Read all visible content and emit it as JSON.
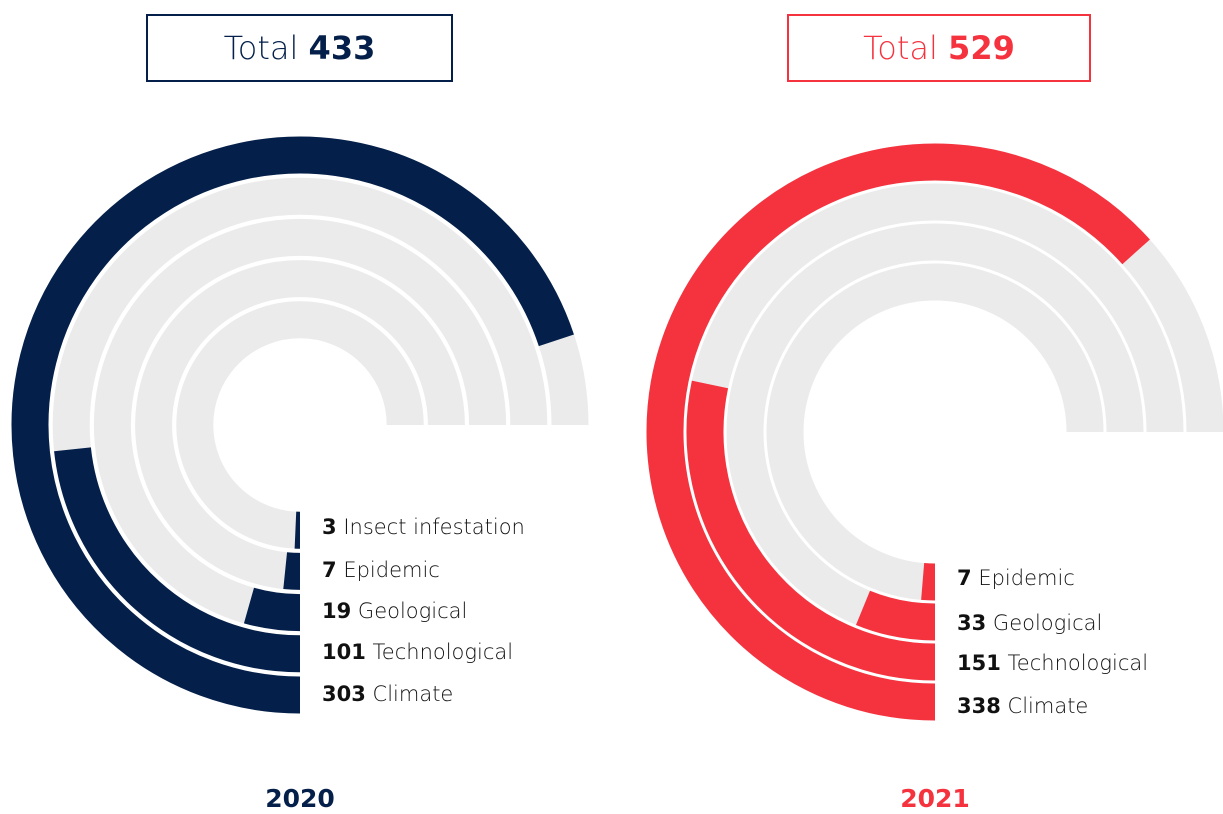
{
  "chart_data": [
    {
      "type": "radial_bar",
      "total_label": "Total",
      "total": 433,
      "year": "2020",
      "categories": [
        "Climate",
        "Technological",
        "Geological",
        "Epidemic",
        "Insect infestation"
      ],
      "values": [
        303,
        101,
        19,
        7,
        3
      ],
      "color": "#04204a",
      "track_color": "#ebebeb",
      "ylim": [
        0,
        325
      ]
    },
    {
      "type": "radial_bar",
      "total_label": "Total",
      "total": 529,
      "year": "2021",
      "categories": [
        "Climate",
        "Technological",
        "Geological",
        "Epidemic"
      ],
      "values": [
        338,
        151,
        33,
        7
      ],
      "color": "#f5333f",
      "track_color": "#ebebeb",
      "ylim": [
        0,
        400
      ]
    }
  ]
}
